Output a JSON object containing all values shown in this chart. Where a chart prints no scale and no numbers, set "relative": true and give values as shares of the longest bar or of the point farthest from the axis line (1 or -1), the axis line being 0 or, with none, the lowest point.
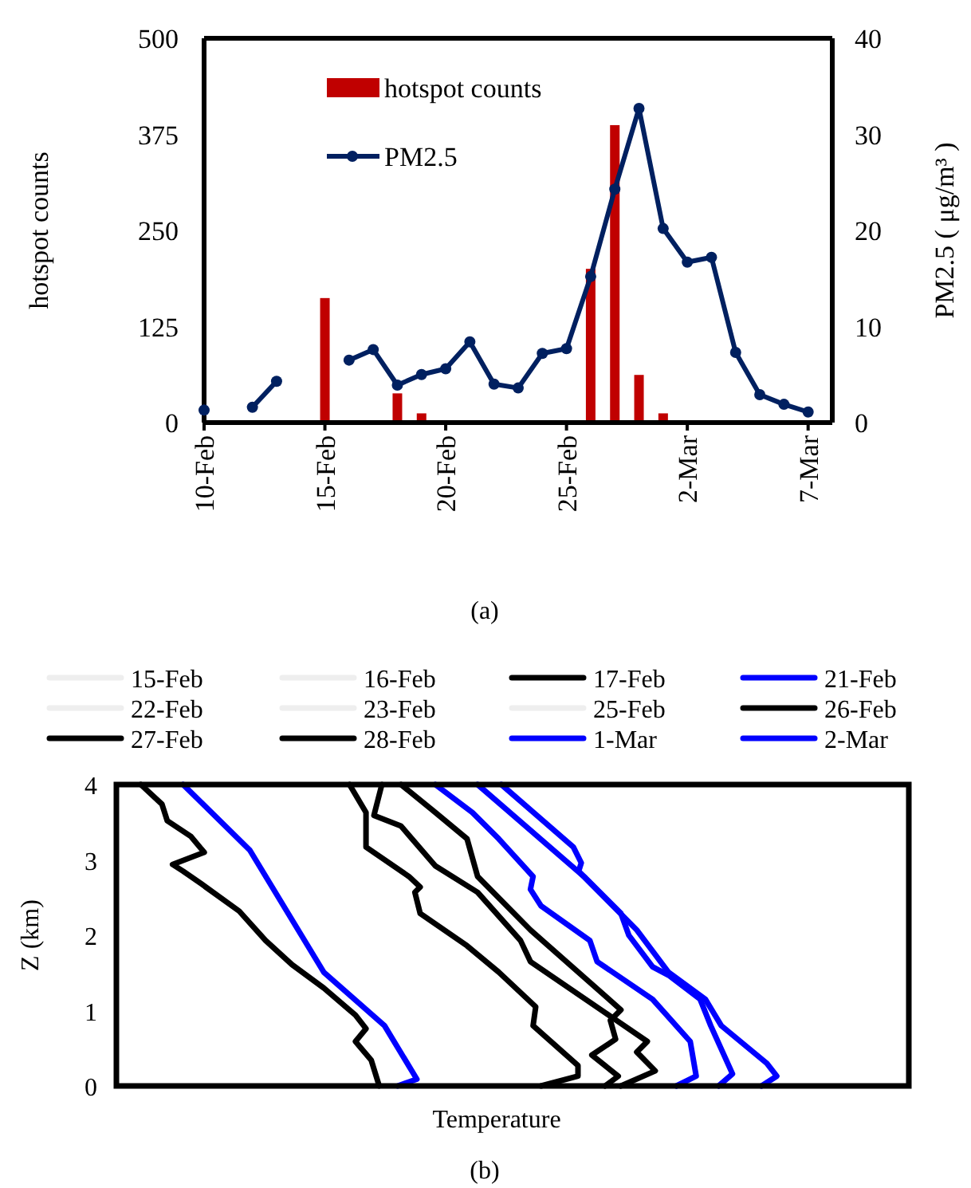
{
  "chart_data": [
    {
      "type": "bar",
      "annotations": [
        "(a)"
      ],
      "ylabel": "hotspot counts",
      "y2label": "PM2.5 ( μg/m³ )",
      "xlim": [
        "--02-10",
        "--03-08"
      ],
      "xticks": [
        {
          "value": "--02-10",
          "label": "10-Feb"
        },
        {
          "value": "--02-15",
          "label": "15-Feb"
        },
        {
          "value": "--02-20",
          "label": "20-Feb"
        },
        {
          "value": "--02-25",
          "label": "25-Feb"
        },
        {
          "value": "--03-02",
          "label": "2-Mar"
        },
        {
          "value": "--03-07",
          "label": "7-Mar"
        }
      ],
      "ylim": [
        0,
        500
      ],
      "yticks": [
        0,
        125,
        250,
        375,
        500
      ],
      "y2lim": [
        0,
        40
      ],
      "y2ticks": [
        0,
        10,
        20,
        30,
        40
      ],
      "legend": "top left",
      "marker": "circle",
      "series": [
        {
          "name": "hotspot counts",
          "type": "bar",
          "color": "#c00000",
          "x": [
            "--02-15",
            "--02-18",
            "--02-19",
            "--02-26",
            "--02-27",
            "--02-28",
            "--03-01"
          ],
          "values": [
            162,
            38,
            12,
            200,
            387,
            62,
            12
          ]
        },
        {
          "name": "PM2.5",
          "type": "line",
          "axis": "y2",
          "color": "#002060",
          "x": [
            "--02-10",
            "--02-11",
            "--02-12",
            "--02-13",
            "--02-14",
            "--02-15",
            "--02-16",
            "--02-17",
            "--02-18",
            "--02-19",
            "--02-20",
            "--02-21",
            "--02-22",
            "--02-23",
            "--02-24",
            "--02-25",
            "--02-26",
            "--02-27",
            "--02-28",
            "--03-01",
            "--03-02",
            "--03-03",
            "--03-04",
            "--03-05",
            "--03-06",
            "--03-07"
          ],
          "values": [
            1.3,
            null,
            1.6,
            4.3,
            null,
            null,
            6.5,
            7.6,
            3.9,
            5.0,
            5.6,
            8.4,
            4.0,
            3.6,
            7.2,
            7.7,
            15.2,
            24.3,
            32.7,
            20.2,
            16.7,
            17.2,
            7.3,
            2.9,
            1.9,
            1.1
          ]
        }
      ]
    },
    {
      "type": "line",
      "orientation": "horizontal",
      "relative": true,
      "xlabel": "Temperature",
      "ylabel": "Z (km)",
      "annotations": [
        "(b)"
      ],
      "ylim": [
        0,
        4
      ],
      "yticks": [
        0,
        1,
        2,
        3,
        4
      ],
      "tick_labels": "y",
      "legend": "top",
      "series": [
        {
          "name": "15-Feb",
          "color": "#eeeeee"
        },
        {
          "name": "16-Feb",
          "color": "#eeeeee"
        },
        {
          "name": "17-Feb",
          "color": "#000000",
          "x": [
            4.0,
            3.74,
            3.52,
            3.31,
            3.1,
            2.94,
            2.85,
            2.68,
            2.32,
            1.93,
            1.61,
            1.3,
            0.94,
            0.76,
            0.59,
            0.34,
            0
          ],
          "values": [
            0.037,
            0.069,
            0.077,
            0.113,
            0.133,
            0.085,
            0.101,
            0.129,
            0.186,
            0.226,
            0.266,
            0.314,
            0.362,
            0.378,
            0.362,
            0.386,
            0.398
          ]
        },
        {
          "name": "21-Feb",
          "color": "#0000ff",
          "x": [
            4.0,
            3.13,
            1.51,
            0.8,
            0.09,
            0
          ],
          "values": [
            0.101,
            0.202,
            0.314,
            0.406,
            0.455,
            0.426
          ]
        },
        {
          "name": "22-Feb",
          "color": "#eeeeee"
        },
        {
          "name": "23-Feb",
          "color": "#eeeeee"
        },
        {
          "name": "25-Feb",
          "color": "#eeeeee"
        },
        {
          "name": "26-Feb",
          "color": "#000000",
          "x": [
            4.0,
            3.63,
            3.17,
            2.78,
            2.64,
            2.57,
            2.29,
            1.86,
            1.51,
            1.05,
            0.8,
            0.27,
            0.13,
            0
          ],
          "values": [
            0.353,
            0.378,
            0.378,
            0.443,
            0.46,
            0.452,
            0.46,
            0.531,
            0.579,
            0.635,
            0.631,
            0.699,
            0.699,
            0.643
          ]
        },
        {
          "name": "27-Feb",
          "color": "#000000",
          "x": [
            4.0,
            3.59,
            3.45,
            2.92,
            2.57,
            1.93,
            1.65,
            0.59,
            0.45,
            0.2,
            0
          ],
          "values": [
            0.402,
            0.39,
            0.431,
            0.483,
            0.547,
            0.612,
            0.627,
            0.804,
            0.788,
            0.816,
            0.764
          ]
        },
        {
          "name": "28-Feb",
          "color": "#000000",
          "x": [
            4.0,
            3.63,
            3.28,
            2.78,
            2.07,
            1.01,
            0.87,
            0.62,
            0.41,
            0.13,
            0
          ],
          "values": [
            0.431,
            0.483,
            0.531,
            0.547,
            0.627,
            0.764,
            0.748,
            0.756,
            0.72,
            0.76,
            0.74
          ]
        },
        {
          "name": "1-Mar",
          "color": "#0000ff",
          "x": [
            4.0,
            3.63,
            3.28,
            2.78,
            2.61,
            2.39,
            1.93,
            1.65,
            1.15,
            0.59,
            0.13,
            0
          ],
          "values": [
            0.483,
            0.539,
            0.579,
            0.631,
            0.627,
            0.643,
            0.717,
            0.728,
            0.812,
            0.869,
            0.878,
            0.848
          ]
        },
        {
          "name": "2-Mar",
          "color": "#0000ff",
          "x": [
            4.0,
            2.78,
            2.29,
            2.0,
            1.58,
            1.47,
            1.15,
            0.8,
            0.16,
            0
          ],
          "values": [
            0.547,
            0.708,
            0.764,
            0.776,
            0.812,
            0.836,
            0.884,
            0.9,
            0.933,
            0.912
          ]
        },
        {
          "color": "#0000ff",
          "x": [
            4.0,
            3.17,
            2.96,
            2.85,
            2.07,
            1.51,
            1.15,
            0.8,
            0.3,
            0.13,
            0
          ],
          "values": [
            0.583,
            0.692,
            0.704,
            0.7,
            0.788,
            0.836,
            0.892,
            0.916,
            0.985,
            1,
            0.977
          ]
        }
      ]
    }
  ]
}
